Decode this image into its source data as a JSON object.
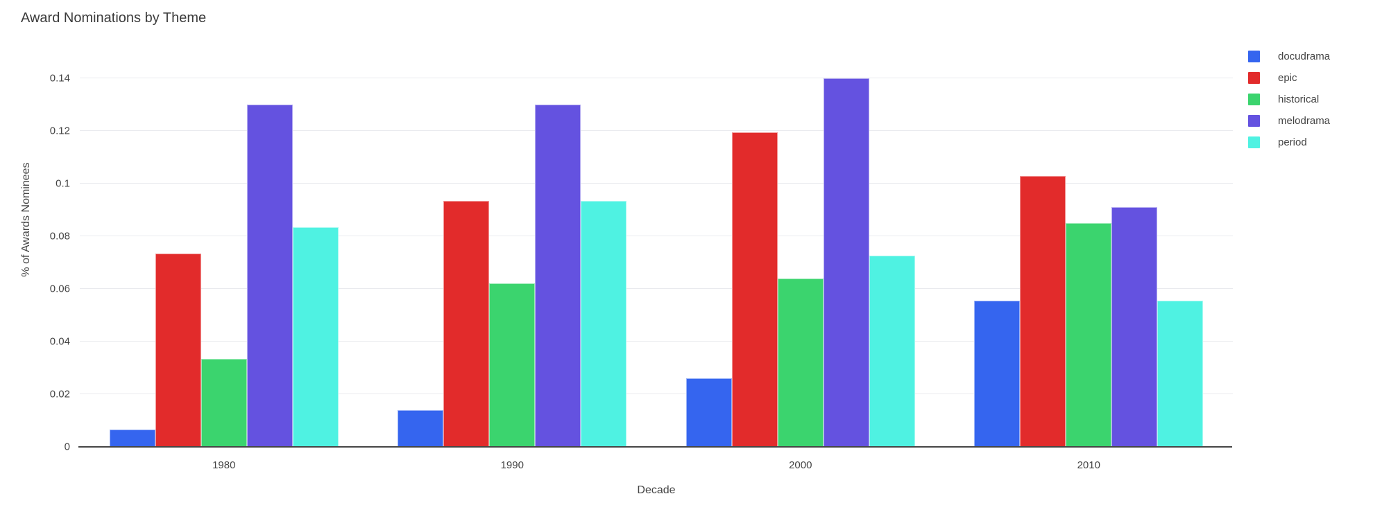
{
  "chart_data": {
    "type": "bar",
    "title": "Award Nominations by Theme",
    "xlabel": "Decade",
    "ylabel": "% of Awards Nominees",
    "categories": [
      "1980",
      "1990",
      "2000",
      "2010"
    ],
    "series": [
      {
        "name": "docudrama",
        "color": "#3565ef",
        "values": [
          0.0067,
          0.014,
          0.026,
          0.0556
        ]
      },
      {
        "name": "epic",
        "color": "#e22b2b",
        "values": [
          0.0733,
          0.0933,
          0.1195,
          0.1028
        ]
      },
      {
        "name": "historical",
        "color": "#3bd46e",
        "values": [
          0.0333,
          0.062,
          0.064,
          0.0851
        ]
      },
      {
        "name": "melodrama",
        "color": "#6452e0",
        "values": [
          0.13,
          0.13,
          0.14,
          0.0911
        ]
      },
      {
        "name": "period",
        "color": "#4ff2e2",
        "values": [
          0.0833,
          0.0933,
          0.0727,
          0.0556
        ]
      }
    ],
    "ylim": [
      0,
      0.15
    ],
    "yticks": [
      {
        "value": 0,
        "label": "0"
      },
      {
        "value": 0.02,
        "label": "0.02"
      },
      {
        "value": 0.04,
        "label": "0.04"
      },
      {
        "value": 0.06,
        "label": "0.06"
      },
      {
        "value": 0.08,
        "label": "0.08"
      },
      {
        "value": 0.1,
        "label": "0.1"
      },
      {
        "value": 0.12,
        "label": "0.12"
      },
      {
        "value": 0.14,
        "label": "0.14"
      }
    ],
    "grid": true,
    "legend_position": "right",
    "legend": [
      "docudrama",
      "epic",
      "historical",
      "melodrama",
      "period"
    ]
  }
}
